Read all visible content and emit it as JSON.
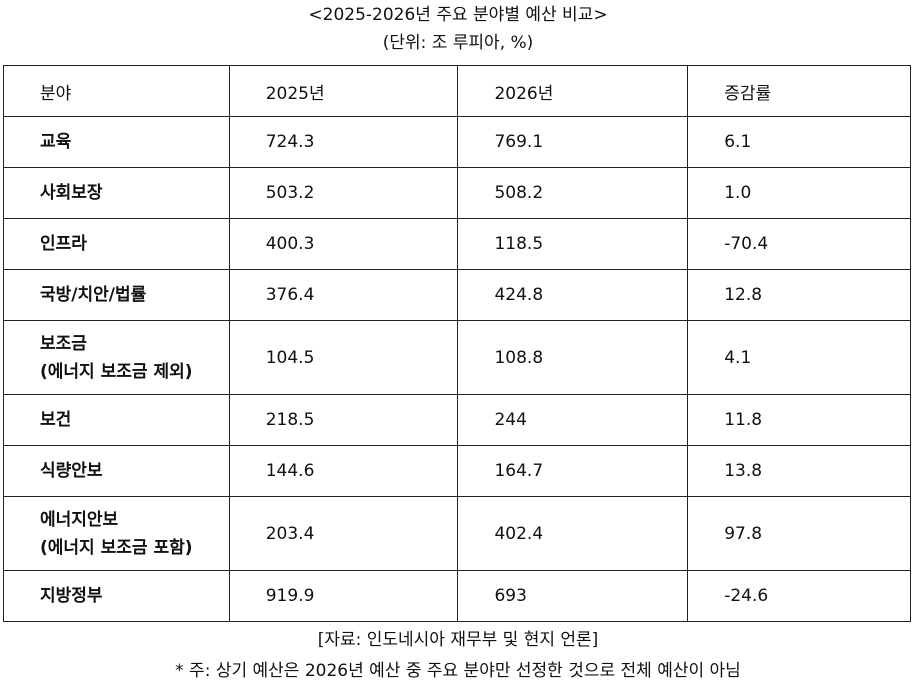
{
  "title": "<2025-2026년 주요 분야별 예산 비교>",
  "unit": "(단위: 조 루피아, %)",
  "table": {
    "headers": [
      "분야",
      "2025년",
      "2026년",
      "증감률"
    ],
    "rows": [
      {
        "sector": "교육",
        "sector2": "",
        "y2025": "724.3",
        "y2026": "769.1",
        "change": "6.1"
      },
      {
        "sector": "사회보장",
        "sector2": "",
        "y2025": "503.2",
        "y2026": "508.2",
        "change": "1.0"
      },
      {
        "sector": "인프라",
        "sector2": "",
        "y2025": "400.3",
        "y2026": "118.5",
        "change": "-70.4"
      },
      {
        "sector": "국방/치안/법률",
        "sector2": "",
        "y2025": "376.4",
        "y2026": "424.8",
        "change": "12.8"
      },
      {
        "sector": "보조금",
        "sector2": "(에너지 보조금 제외)",
        "y2025": "104.5",
        "y2026": "108.8",
        "change": "4.1"
      },
      {
        "sector": "보건",
        "sector2": "",
        "y2025": "218.5",
        "y2026": "244",
        "change": "11.8"
      },
      {
        "sector": "식량안보",
        "sector2": "",
        "y2025": "144.6",
        "y2026": "164.7",
        "change": "13.8"
      },
      {
        "sector": "에너지안보",
        "sector2": "(에너지 보조금 포함)",
        "y2025": "203.4",
        "y2026": "402.4",
        "change": "97.8"
      },
      {
        "sector": "지방정부",
        "sector2": "",
        "y2025": "919.9",
        "y2026": "693",
        "change": "-24.6"
      }
    ]
  },
  "source": "[자료: 인도네시아 재무부 및 현지 언론]",
  "note": "* 주: 상기 예산은 2026년 예산 중 주요 분야만 선정한 것으로 전체 예산이 아님"
}
